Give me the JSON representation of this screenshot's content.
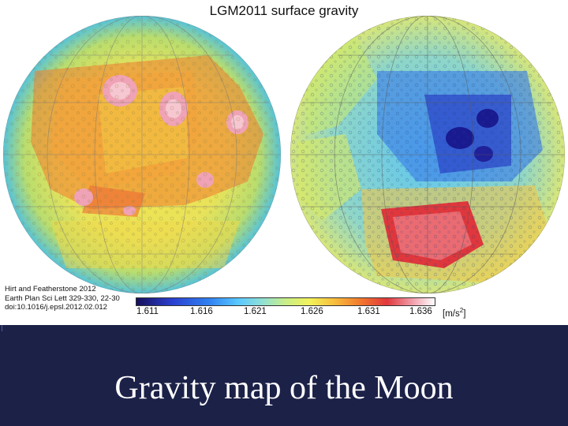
{
  "figure": {
    "title": "LGM2011 surface gravity",
    "citation": [
      "Hirt and Featherstone 2012",
      "Earth Plan Sci Lett 329-330, 22-30",
      "doi:10.1016/j.epsl.2012.02.012"
    ],
    "colorbar": {
      "ticks": [
        "1.611",
        "1.616",
        "1.621",
        "1.626",
        "1.631",
        "1.636"
      ],
      "unit": "[m/s",
      "unit_power": "2",
      "unit_close": "]"
    }
  },
  "slide": {
    "title": "Gravity map of the Moon"
  },
  "colors": {
    "background": "#1c2148",
    "title": "#ffffff"
  }
}
